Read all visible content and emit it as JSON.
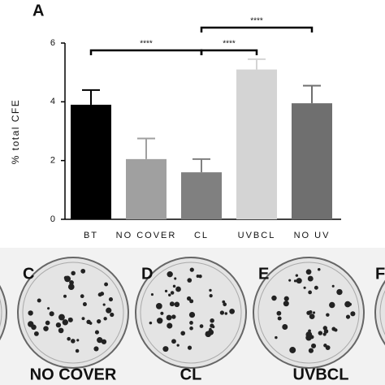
{
  "chart_data": {
    "type": "bar",
    "panel_label": "A",
    "ylabel": "% total CFE",
    "categories": [
      "BT",
      "NO COVER",
      "CL",
      "UVBCL",
      "NO UV"
    ],
    "values": [
      3.9,
      2.05,
      1.6,
      5.1,
      3.95
    ],
    "errors": [
      0.5,
      0.7,
      0.45,
      0.35,
      0.6
    ],
    "colors": [
      "#000000",
      "#a0a0a0",
      "#808080",
      "#d4d4d4",
      "#6f6f6f"
    ],
    "ylim": [
      0,
      6
    ],
    "yticks": [
      0,
      2,
      4,
      6
    ],
    "annotations": [
      {
        "text": "****"
      },
      {
        "text": "****"
      },
      {
        "text": "****"
      }
    ]
  },
  "panels": [
    {
      "label": "C",
      "caption": "NO COVER"
    },
    {
      "label": "D",
      "caption": "CL"
    },
    {
      "label": "E",
      "caption": "UVBCL"
    },
    {
      "label": "F"
    }
  ]
}
